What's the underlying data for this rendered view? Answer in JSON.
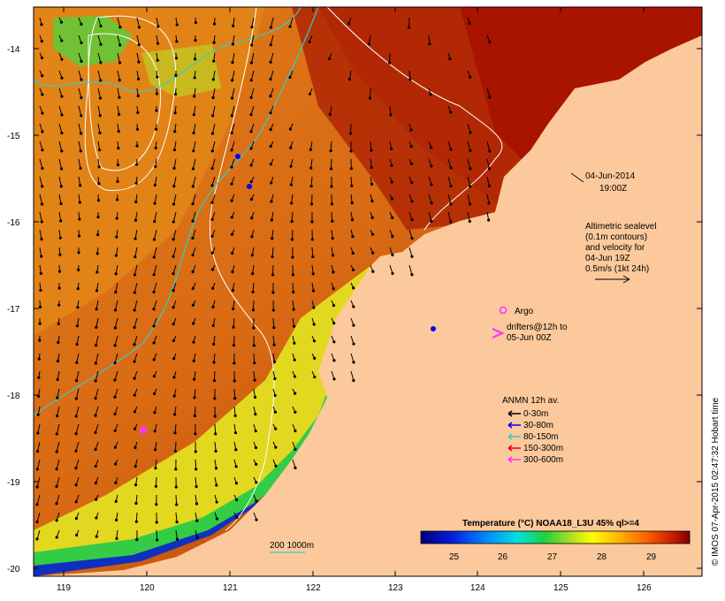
{
  "map": {
    "date_label": "04-Jun-2014",
    "time_label": "19:00Z",
    "altimetry_note": [
      "Altimetric sealevel",
      "(0.1m contours)",
      "and velocity for",
      "04-Jun 19Z",
      "0.5m/s (1kt 24h)"
    ],
    "argo_label": "Argo",
    "drifters_label": [
      "drifters@12h to",
      "05-Jun 00Z"
    ],
    "anmn_title": "ANMN 12h av.",
    "anmn_legend": [
      {
        "label": "0-30m",
        "color": "#000000"
      },
      {
        "label": "30-80m",
        "color": "#0000ee"
      },
      {
        "label": "80-150m",
        "color": "#33cccc"
      },
      {
        "label": "150-300m",
        "color": "#ee0000"
      },
      {
        "label": "300-600m",
        "color": "#ff33ff"
      }
    ],
    "isobath_label": "200  1000m",
    "colorbar_title": "Temperature (°C) NOAA18_L3U 45% ql>=4",
    "colorbar_ticks": [
      "25",
      "26",
      "27",
      "28",
      "29"
    ],
    "lon_ticks": [
      "119",
      "120",
      "121",
      "122",
      "123",
      "124",
      "125",
      "126"
    ],
    "lat_ticks": [
      "-14",
      "-15",
      "-16",
      "-17",
      "-18",
      "-19",
      "-20"
    ],
    "credit": "© IMOS 07-Apr-2015 02:47:32 Hobart time",
    "colors": {
      "land": "#fbc99b",
      "sst_hot": "#a80000",
      "sst_warm": "#d95a10",
      "sst_orange": "#e98a18",
      "sst_yellow": "#e8e020",
      "sst_green": "#33cc44",
      "sst_blue": "#1030c0",
      "contour": "#ffffff",
      "isobath": "#33cccc"
    }
  }
}
